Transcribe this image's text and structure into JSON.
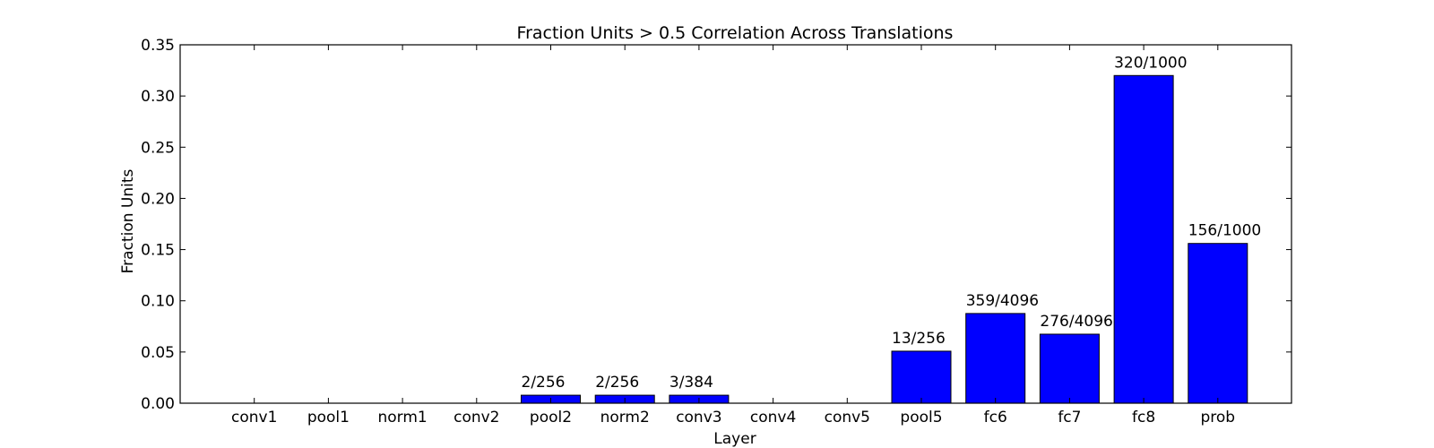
{
  "chart_data": {
    "type": "bar",
    "title": "Fraction Units > 0.5 Correlation Across Translations",
    "xlabel": "Layer",
    "ylabel": "Fraction Units",
    "ylim": [
      0,
      0.35
    ],
    "yticks": [
      "0.00",
      "0.05",
      "0.10",
      "0.15",
      "0.20",
      "0.25",
      "0.30",
      "0.35"
    ],
    "grid": false,
    "legend": "none",
    "bar_color": "#0000ff",
    "edge_color": "#000000",
    "categories": [
      "conv1",
      "pool1",
      "norm1",
      "conv2",
      "pool2",
      "norm2",
      "conv3",
      "conv4",
      "conv5",
      "pool5",
      "fc6",
      "fc7",
      "fc8",
      "prob"
    ],
    "values": [
      0,
      0,
      0,
      0,
      0.0078,
      0.0078,
      0.0078,
      0,
      0,
      0.0508,
      0.0876,
      0.0674,
      0.32,
      0.156
    ],
    "data_labels": [
      "",
      "",
      "",
      "",
      "2/256",
      "2/256",
      "3/384",
      "",
      "",
      "13/256",
      "359/4096",
      "276/4096",
      "320/1000",
      "156/1000"
    ]
  }
}
